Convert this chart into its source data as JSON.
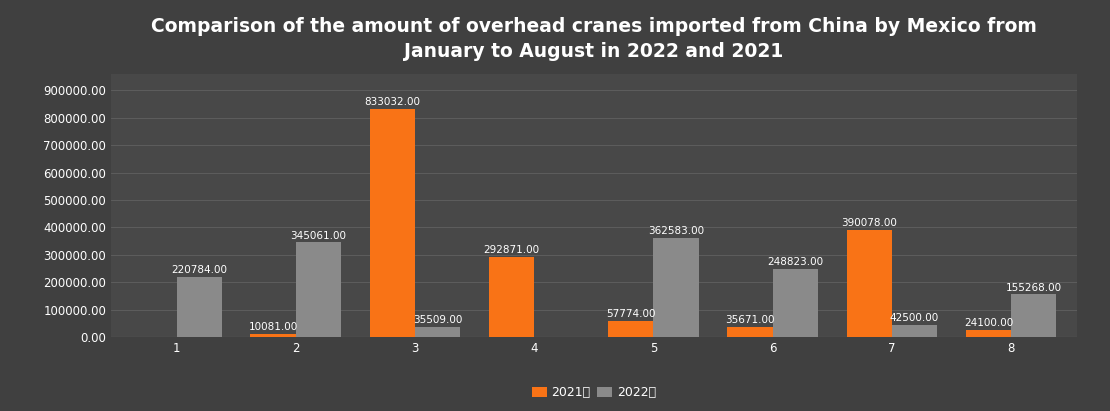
{
  "title": "Comparison of the amount of overhead cranes imported from China by Mexico from\nJanuary to August in 2022 and 2021",
  "months": [
    "1",
    "2",
    "3",
    "4",
    "5",
    "6",
    "7",
    "8"
  ],
  "values_2021": [
    0,
    10081.0,
    833032.0,
    292871.0,
    57774.0,
    35671.0,
    390078.0,
    24100.0
  ],
  "values_2022": [
    220784.0,
    345061.0,
    35509.0,
    0,
    362583.0,
    248823.0,
    42500.0,
    155268.0
  ],
  "color_2021": "#F97316",
  "color_2022": "#8A8A8A",
  "background_color": "#404040",
  "plot_bg_color": "#484848",
  "grid_color": "#606060",
  "text_color": "#FFFFFF",
  "bar_width": 0.38,
  "ylim": [
    0,
    960000
  ],
  "yticks": [
    0,
    100000,
    200000,
    300000,
    400000,
    500000,
    600000,
    700000,
    800000,
    900000
  ],
  "ytick_labels": [
    "0.00",
    "100000.00",
    "200000.00",
    "300000.00",
    "400000.00",
    "500000.00",
    "600000.00",
    "700000.00",
    "800000.00",
    "900000.00"
  ],
  "legend_2021": "2021年",
  "legend_2022": "2022年",
  "title_fontsize": 13.5,
  "tick_fontsize": 8.5,
  "legend_fontsize": 9,
  "bar_label_fontsize": 7.5
}
